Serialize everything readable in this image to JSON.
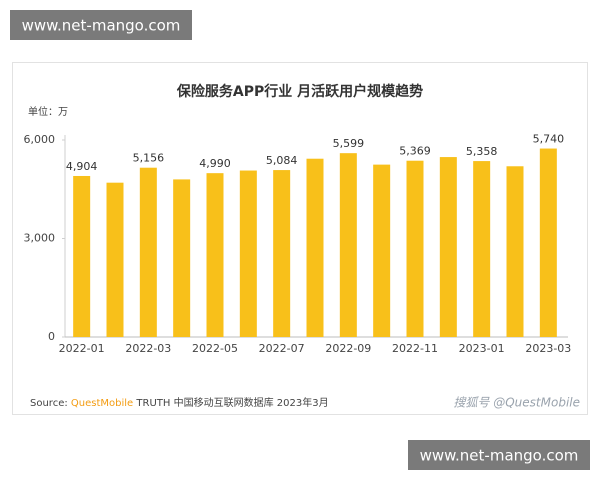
{
  "watermark": "www.net-mango.com",
  "footer_logo": "搜狐号 @QuestMobile",
  "chart_data": {
    "type": "bar",
    "title": "保险服务APP行业 月活跃用户规模趋势",
    "unit_label": "单位：万",
    "source": [
      "Source:",
      "QuestMobile",
      "TRUTH 中国移动互联网数据库 2023年3月"
    ],
    "categories": [
      "2022-01",
      null,
      "2022-03",
      null,
      "2022-05",
      null,
      "2022-07",
      null,
      "2022-09",
      null,
      "2022-11",
      null,
      "2023-01",
      null,
      "2023-03"
    ],
    "values": [
      4904,
      4700,
      5156,
      4800,
      4990,
      5070,
      5084,
      5430,
      5599,
      5250,
      5369,
      5480,
      5358,
      5200,
      5740
    ],
    "value_labels": [
      "4,904",
      null,
      "5,156",
      null,
      "4,990",
      null,
      "5,084",
      null,
      "5,599",
      null,
      "5,369",
      null,
      "5,358",
      null,
      "5,740"
    ],
    "color": "#f8c01a",
    "ylim": [
      0,
      6000
    ],
    "yticks": [
      0,
      {
        "value": 3000,
        "label": "3,000"
      },
      {
        "value": 6000,
        "label": "6,000"
      }
    ],
    "grid": false
  }
}
